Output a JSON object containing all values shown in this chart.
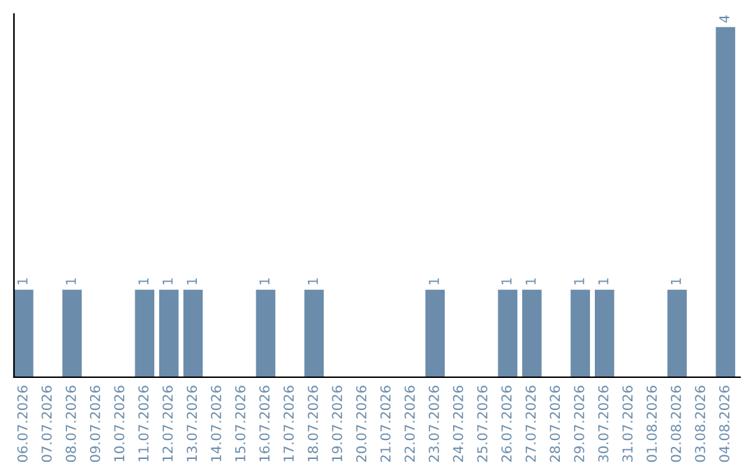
{
  "chart_data": {
    "type": "bar",
    "categories": [
      "06.07.2026",
      "07.07.2026",
      "08.07.2026",
      "09.07.2026",
      "10.07.2026",
      "11.07.2026",
      "12.07.2026",
      "13.07.2026",
      "14.07.2026",
      "15.07.2026",
      "16.07.2026",
      "17.07.2026",
      "18.07.2026",
      "19.07.2026",
      "20.07.2026",
      "21.07.2026",
      "22.07.2026",
      "23.07.2026",
      "24.07.2026",
      "25.07.2026",
      "26.07.2026",
      "27.07.2026",
      "28.07.2026",
      "29.07.2026",
      "30.07.2026",
      "31.07.2026",
      "01.08.2026",
      "02.08.2026",
      "03.08.2026",
      "04.08.2026"
    ],
    "values": [
      1,
      0,
      1,
      0,
      0,
      1,
      1,
      1,
      0,
      0,
      1,
      0,
      1,
      0,
      0,
      0,
      0,
      1,
      0,
      0,
      1,
      1,
      0,
      1,
      1,
      0,
      0,
      1,
      0,
      4
    ],
    "value_labels": [
      "1",
      null,
      "1",
      null,
      null,
      "1",
      "1",
      "1",
      null,
      null,
      "1",
      null,
      "1",
      null,
      null,
      null,
      null,
      "1",
      null,
      null,
      "1",
      "1",
      null,
      "1",
      "1",
      null,
      null,
      "1",
      null,
      "4"
    ],
    "color": "#6b8cab",
    "ylim": [
      0,
      4.15
    ],
    "tick_labels": "x",
    "grid": false,
    "legend": false
  }
}
